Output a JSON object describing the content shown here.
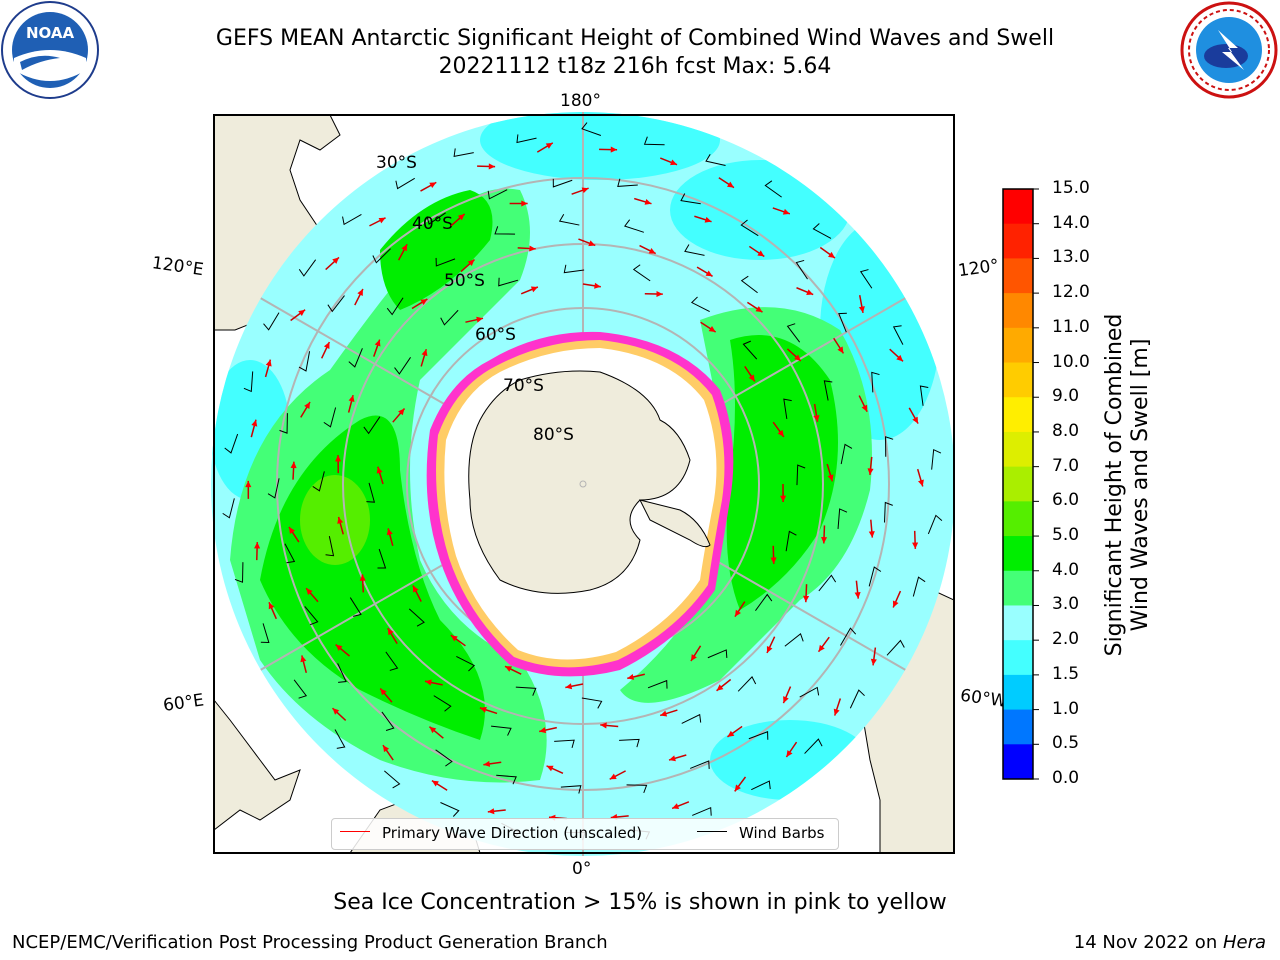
{
  "title": {
    "line1": "GEFS MEAN Antarctic Significant Height of Combined Wind Waves and Swell",
    "line2": "20221112 t18z 216h fcst   Max: 5.64"
  },
  "logos": {
    "left": {
      "name": "noaa-logo",
      "text": "NOAA",
      "ring_text": "NATIONAL OCEANIC AND ATMOSPHERIC ADMINISTRATION · U.S. DEPARTMENT OF COMMERCE"
    },
    "right": {
      "name": "nws-logo",
      "ring_text": "NATIONAL WEATHER SERVICE"
    }
  },
  "map": {
    "projection": "south-polar-stereographic",
    "longitude_labels": {
      "top": "180°",
      "bottom": "0°",
      "left_upper": "120°E",
      "left_lower": "60°E",
      "right_upper": "120°",
      "right_lower": "60°W"
    },
    "latitude_labels": [
      "30°S",
      "40°S",
      "50°S",
      "60°S",
      "70°S",
      "80°S"
    ],
    "colors": {
      "land": "#efecdc",
      "ice": "#ffffff",
      "ice_edge_pink": "#ff33cc",
      "ice_edge_yellow": "#ffcc66",
      "wave_arrow": "#ff0000",
      "wind_barb": "#000000",
      "graticule": "#b4b4b4"
    }
  },
  "legend": {
    "primary_wave": "Primary Wave Direction (unscaled)",
    "wind_barbs": "Wind Barbs"
  },
  "colorbar": {
    "label_line1": "Significant Height of Combined",
    "label_line2": "Wind Waves and Swell [m]",
    "ticks": [
      "0.0",
      "0.5",
      "1.0",
      "1.5",
      "2.0",
      "3.0",
      "4.0",
      "5.0",
      "6.0",
      "7.0",
      "8.0",
      "9.0",
      "10.0",
      "11.0",
      "12.0",
      "13.0",
      "14.0",
      "15.0"
    ],
    "colors": [
      "#0000ff",
      "#0077ff",
      "#00ccff",
      "#44ffff",
      "#99ffff",
      "#44ff77",
      "#00ee00",
      "#55ee00",
      "#aaee00",
      "#ddee00",
      "#ffee00",
      "#ffcc00",
      "#ffaa00",
      "#ff8800",
      "#ff5500",
      "#ff2200",
      "#ff0000"
    ]
  },
  "caption": "Sea Ice Concentration > 15% is shown in pink to yellow",
  "footer": {
    "left": "NCEP/EMC/Verification Post Processing Product Generation Branch",
    "date": "14 Nov 2022 on ",
    "host": "Hera"
  }
}
